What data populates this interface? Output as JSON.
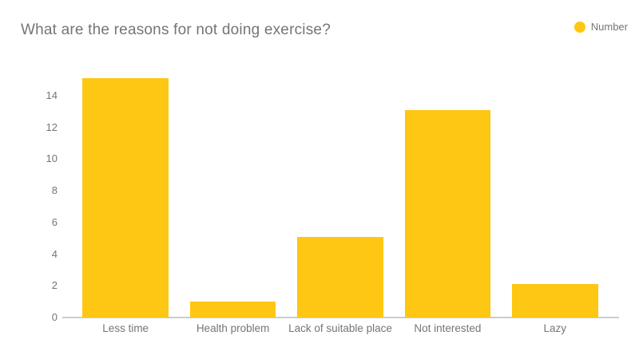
{
  "title": "What are the reasons for not doing exercise?",
  "legend": {
    "label": "Number",
    "marker": "circle",
    "marker_color": "#FDC713",
    "position": "top-right"
  },
  "chart_data": {
    "type": "bar",
    "title": "What are the reasons for not doing exercise?",
    "categories": [
      "Less time",
      "Health problem",
      "Lack of suitable place",
      "Not interested",
      "Lazy"
    ],
    "series": [
      {
        "name": "Number",
        "color": "#FDC713",
        "values": [
          15.1,
          1,
          5.1,
          13.1,
          2.1
        ]
      }
    ],
    "xlabel": "",
    "ylabel": "",
    "ylim": [
      0,
      15.5
    ],
    "yticks": [
      0,
      2,
      4,
      6,
      8,
      10,
      12,
      14
    ],
    "grid": false,
    "legend_position": "top-right"
  },
  "colors": {
    "bar": "#FDC713",
    "title_text": "#757575",
    "axis_text": "#757575",
    "axis_line": "#cccccc",
    "background": "#ffffff"
  }
}
